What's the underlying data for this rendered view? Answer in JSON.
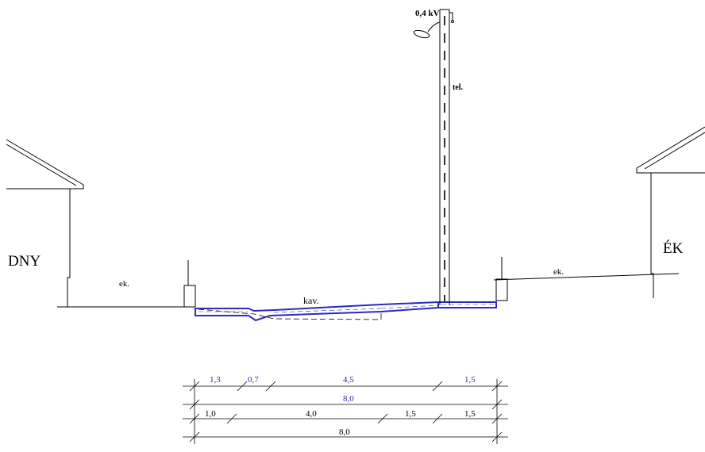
{
  "labels": {
    "left_side": "DNY",
    "right_side": "ÉK",
    "left_sidewalk": "ek.",
    "right_sidewalk": "ek.",
    "roadway": "kav.",
    "power_line": "0,4 kV",
    "telecom": "tel."
  },
  "dimensions": {
    "new_row": {
      "segments": [
        "1,3",
        "0,7",
        "4,5",
        "1,5"
      ],
      "total": "8,0",
      "color": "#2b2bbd"
    },
    "existing_row": {
      "segments": [
        "1,0",
        "4,0",
        "1,5",
        "1,5"
      ],
      "total": "8,0",
      "color": "#000000"
    }
  },
  "colors": {
    "line": "#000000",
    "new_construction": "#2b2bbd"
  }
}
